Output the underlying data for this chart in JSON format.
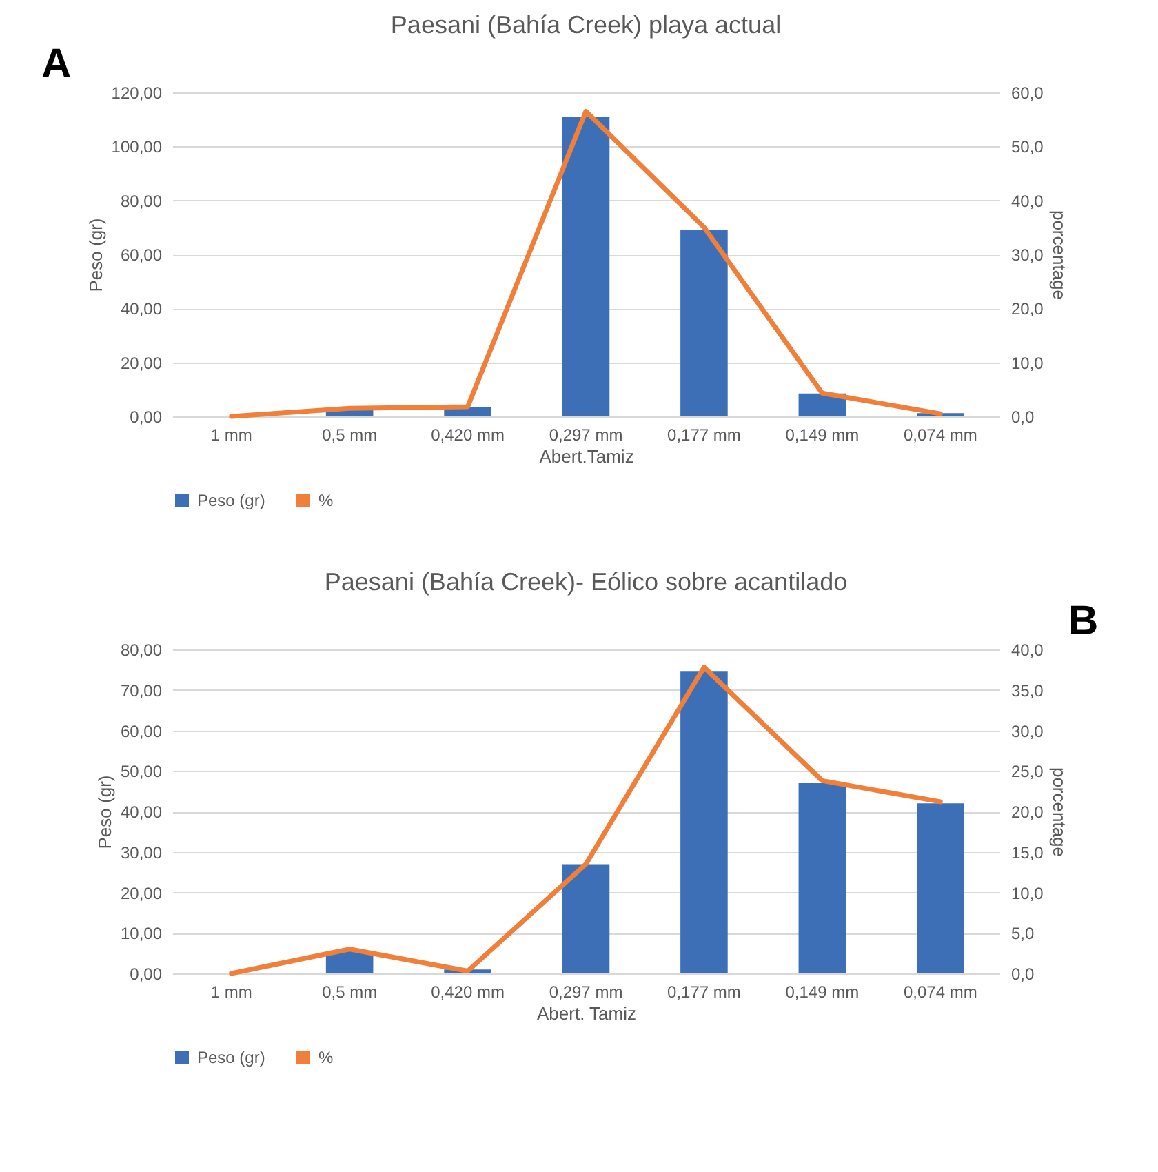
{
  "chart_data": [
    {
      "type": "bar",
      "title": "Paesani (Bahía Creek) playa actual",
      "xlabel": "Abert.Tamiz",
      "ylabel": "Peso (gr)",
      "y2label": "porcentage",
      "categories": [
        "1 mm",
        "0,5 mm",
        "0,420 mm",
        "0,297 mm",
        "0,177 mm",
        "0,149 mm",
        "0,074 mm"
      ],
      "series": [
        {
          "name": "Peso (gr)",
          "type": "bar",
          "color": "#3d6fb6",
          "values": [
            0,
            3,
            3.5,
            111,
            69,
            8.5,
            1.2
          ]
        },
        {
          "name": "%",
          "type": "line",
          "axis": "y2",
          "color": "#f07f3a",
          "values": [
            0,
            1.5,
            1.8,
            56.5,
            35,
            4.3,
            0.5
          ]
        }
      ],
      "ylim": [
        0,
        120
      ],
      "yticks": [
        {
          "value": 0,
          "label": "0,00"
        },
        {
          "value": 20,
          "label": "20,00"
        },
        {
          "value": 40,
          "label": "40,00"
        },
        {
          "value": 60,
          "label": "60,00"
        },
        {
          "value": 80,
          "label": "80,00"
        },
        {
          "value": 100,
          "label": "100,00"
        },
        {
          "value": 120,
          "label": "120,00"
        }
      ],
      "y2lim": [
        0,
        60
      ],
      "y2ticks": [
        {
          "value": 0,
          "label": "0,0"
        },
        {
          "value": 10,
          "label": "10,0"
        },
        {
          "value": 20,
          "label": "20,0"
        },
        {
          "value": 30,
          "label": "30,0"
        },
        {
          "value": 40,
          "label": "40,0"
        },
        {
          "value": 50,
          "label": "50,0"
        },
        {
          "value": 60,
          "label": "60,0"
        }
      ],
      "grid": "y",
      "legend": "bottom",
      "marker": "none",
      "line_style": "solid",
      "annotations": [
        "A"
      ]
    },
    {
      "type": "bar",
      "title": "Paesani (Bahía Creek)- Eólico sobre acantilado",
      "xlabel": "Abert. Tamiz",
      "ylabel": "Peso (gr)",
      "y2label": "porcentage",
      "categories": [
        "1 mm",
        "0,5 mm",
        "0,420 mm",
        "0,297 mm",
        "0,177 mm",
        "0,149 mm",
        "0,074 mm"
      ],
      "series": [
        {
          "name": "Peso (gr)",
          "type": "bar",
          "color": "#3d6fb6",
          "values": [
            0,
            5.5,
            1,
            27,
            74.5,
            47,
            42
          ]
        },
        {
          "name": "%",
          "type": "line",
          "axis": "y2",
          "color": "#f07f3a",
          "values": [
            0,
            3,
            0.3,
            13.5,
            37.8,
            23.8,
            21.2
          ]
        }
      ],
      "ylim": [
        0,
        80
      ],
      "yticks": [
        {
          "value": 0,
          "label": "0,00"
        },
        {
          "value": 10,
          "label": "10,00"
        },
        {
          "value": 20,
          "label": "20,00"
        },
        {
          "value": 30,
          "label": "30,00"
        },
        {
          "value": 40,
          "label": "40,00"
        },
        {
          "value": 50,
          "label": "50,00"
        },
        {
          "value": 60,
          "label": "60,00"
        },
        {
          "value": 70,
          "label": "70,00"
        },
        {
          "value": 80,
          "label": "80,00"
        }
      ],
      "y2lim": [
        0,
        40
      ],
      "y2ticks": [
        {
          "value": 0,
          "label": "0,0"
        },
        {
          "value": 5,
          "label": "5,0"
        },
        {
          "value": 10,
          "label": "10,0"
        },
        {
          "value": 15,
          "label": "15,0"
        },
        {
          "value": 20,
          "label": "20,0"
        },
        {
          "value": 25,
          "label": "25,0"
        },
        {
          "value": 30,
          "label": "30,0"
        },
        {
          "value": 35,
          "label": "35,0"
        },
        {
          "value": 40,
          "label": "40,0"
        }
      ],
      "grid": "y",
      "legend": "bottom",
      "marker": "none",
      "line_style": "solid",
      "annotations": [
        "B"
      ]
    }
  ]
}
